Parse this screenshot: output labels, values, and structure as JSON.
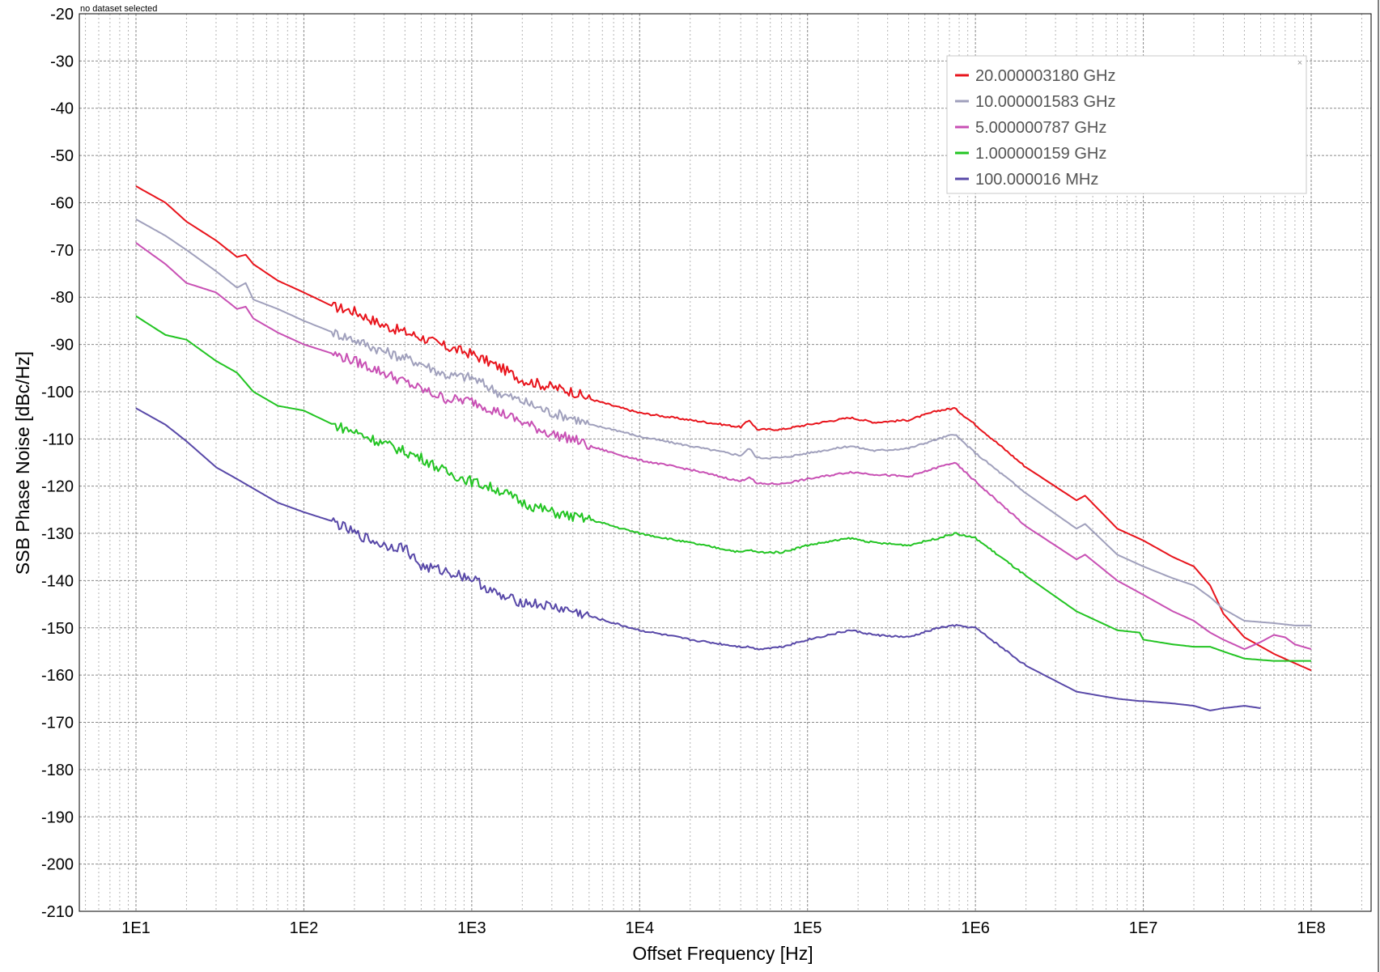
{
  "status_text": "no dataset selected",
  "chart_data": {
    "type": "line",
    "xlabel": "Offset Frequency [Hz]",
    "ylabel": "SSB Phase Noise [dBc/Hz]",
    "x_scale": "log",
    "xlim": [
      10,
      100000000
    ],
    "ylim": [
      -210,
      -20
    ],
    "x_ticks": [
      {
        "value": 10,
        "label": "1E1"
      },
      {
        "value": 100,
        "label": "1E2"
      },
      {
        "value": 1000,
        "label": "1E3"
      },
      {
        "value": 10000,
        "label": "1E4"
      },
      {
        "value": 100000,
        "label": "1E5"
      },
      {
        "value": 1000000,
        "label": "1E6"
      },
      {
        "value": 10000000,
        "label": "1E7"
      },
      {
        "value": 100000000,
        "label": "1E8"
      }
    ],
    "y_ticks": [
      -20,
      -30,
      -40,
      -50,
      -60,
      -70,
      -80,
      -90,
      -100,
      -110,
      -120,
      -130,
      -140,
      -150,
      -160,
      -170,
      -180,
      -190,
      -200,
      -210
    ],
    "grid": true,
    "legend_position": "top-right",
    "legend_close_glyph": "×",
    "series": [
      {
        "name": "20.000003180 GHz",
        "color": "#e8141c",
        "x": [
          10,
          15,
          20,
          30,
          40,
          45,
          50,
          70,
          100,
          150,
          200,
          300,
          500,
          700,
          1000,
          1500,
          2000,
          3000,
          4000,
          5000,
          7000,
          10000,
          20000,
          40000,
          45000,
          50000,
          70000,
          100000,
          180000,
          250000,
          400000,
          600000,
          750000,
          1000000,
          2000000,
          4000000,
          4500000,
          7000000,
          10000000,
          15000000,
          20000000,
          25000000,
          30000000,
          40000000,
          60000000,
          80000000,
          100000000
        ],
        "y": [
          -56.5,
          -60,
          -64,
          -68,
          -71.5,
          -71,
          -73,
          -76.5,
          -79,
          -82,
          -83,
          -86,
          -88.5,
          -90.5,
          -92,
          -95,
          -97.5,
          -99,
          -100,
          -101.5,
          -103,
          -104.5,
          -106,
          -107.5,
          -106,
          -108,
          -108,
          -107,
          -105.5,
          -106.5,
          -106,
          -104,
          -103.5,
          -107,
          -116,
          -123,
          -122,
          -129,
          -131.5,
          -135,
          -137,
          -141,
          -147,
          -152,
          -155.5,
          -157.5,
          -159
        ]
      },
      {
        "name": "10.000001583 GHz",
        "color": "#a0a0bc",
        "x": [
          10,
          15,
          20,
          30,
          40,
          45,
          50,
          70,
          100,
          150,
          200,
          300,
          500,
          700,
          1000,
          1500,
          2000,
          3000,
          4000,
          5000,
          7000,
          10000,
          20000,
          40000,
          45000,
          50000,
          70000,
          100000,
          180000,
          250000,
          400000,
          600000,
          750000,
          1000000,
          2000000,
          4000000,
          4500000,
          7000000,
          10000000,
          15000000,
          20000000,
          25000000,
          30000000,
          40000000,
          60000000,
          80000000,
          100000000
        ],
        "y": [
          -63.5,
          -67,
          -70,
          -74.5,
          -78,
          -77,
          -80.5,
          -82.5,
          -85,
          -87.5,
          -89,
          -91.5,
          -94,
          -96.5,
          -97,
          -100.5,
          -102,
          -104.5,
          -105.5,
          -107,
          -108,
          -109.5,
          -111.5,
          -113.5,
          -112,
          -114,
          -114,
          -113,
          -111.5,
          -112.5,
          -112,
          -110,
          -109,
          -113,
          -121.5,
          -129,
          -128,
          -134.5,
          -137,
          -139.5,
          -141,
          -143.5,
          -146,
          -148.5,
          -149,
          -149.5,
          -149.5
        ]
      },
      {
        "name": "5.000000787 GHz",
        "color": "#c850b4",
        "x": [
          10,
          15,
          20,
          30,
          40,
          45,
          50,
          70,
          100,
          150,
          200,
          300,
          500,
          700,
          1000,
          1500,
          2000,
          3000,
          4000,
          5000,
          7000,
          10000,
          20000,
          40000,
          45000,
          50000,
          70000,
          100000,
          180000,
          250000,
          400000,
          600000,
          750000,
          1000000,
          2000000,
          4000000,
          4500000,
          7000000,
          10000000,
          15000000,
          20000000,
          25000000,
          30000000,
          40000000,
          50000000,
          60000000,
          70000000,
          80000000,
          100000000
        ],
        "y": [
          -68.5,
          -73,
          -77,
          -79,
          -82.5,
          -82,
          -84.5,
          -87.5,
          -90,
          -92,
          -93.5,
          -96,
          -99.5,
          -101.5,
          -102,
          -104.5,
          -106.5,
          -109,
          -110,
          -111.5,
          -113,
          -114.5,
          -116.5,
          -119,
          -118,
          -119.5,
          -119.5,
          -118.5,
          -117,
          -117.5,
          -118,
          -116,
          -115,
          -119,
          -128.5,
          -135.5,
          -134.5,
          -140,
          -143,
          -146.5,
          -148.5,
          -151,
          -152.5,
          -154.5,
          -153,
          -151.5,
          -152,
          -153.5,
          -154.5
        ]
      },
      {
        "name": "1.000000159 GHz",
        "color": "#22c422",
        "x": [
          10,
          15,
          20,
          30,
          40,
          50,
          70,
          100,
          150,
          200,
          300,
          500,
          700,
          1000,
          1500,
          2000,
          3000,
          4000,
          5000,
          7000,
          10000,
          20000,
          40000,
          45000,
          50000,
          70000,
          100000,
          180000,
          250000,
          400000,
          600000,
          750000,
          1000000,
          2000000,
          4000000,
          7000000,
          9500000,
          10000000,
          15000000,
          20000000,
          25000000,
          30000000,
          40000000,
          60000000,
          100000000
        ],
        "y": [
          -84,
          -88,
          -89,
          -93.5,
          -96,
          -100,
          -103,
          -104,
          -107,
          -108.5,
          -111,
          -114,
          -117,
          -119,
          -121,
          -123.5,
          -125.5,
          -126.5,
          -127,
          -128.5,
          -130,
          -132,
          -134,
          -133.5,
          -134,
          -134,
          -132.5,
          -131,
          -132,
          -132.5,
          -131,
          -130,
          -131,
          -139,
          -146.5,
          -150.5,
          -151,
          -152.5,
          -153.5,
          -154,
          -154,
          -155,
          -156.5,
          -157,
          -157
        ]
      },
      {
        "name": "100.000016 MHz",
        "color": "#5848a8",
        "x": [
          10,
          15,
          20,
          30,
          40,
          50,
          70,
          100,
          150,
          200,
          300,
          400,
          500,
          700,
          1000,
          1500,
          2000,
          3000,
          4000,
          5000,
          7000,
          10000,
          20000,
          40000,
          45000,
          50000,
          70000,
          100000,
          180000,
          250000,
          400000,
          600000,
          750000,
          1000000,
          2000000,
          4000000,
          7000000,
          9500000,
          10000000,
          15000000,
          20000000,
          25000000,
          30000000,
          40000000,
          50000000
        ],
        "y": [
          -103.5,
          -107,
          -110.5,
          -116,
          -118.5,
          -120.5,
          -123.5,
          -125.5,
          -127.5,
          -130,
          -132.5,
          -133,
          -137,
          -138,
          -139.5,
          -143.5,
          -144.5,
          -145.5,
          -146.5,
          -147.5,
          -149,
          -150.5,
          -152.5,
          -154,
          -154,
          -154.5,
          -154,
          -152.5,
          -150.5,
          -151.5,
          -152,
          -150,
          -149.5,
          -150,
          -158,
          -163.5,
          -165,
          -165.5,
          -165.5,
          -166,
          -166.5,
          -167.5,
          -167,
          -166.5,
          -167
        ]
      }
    ]
  }
}
